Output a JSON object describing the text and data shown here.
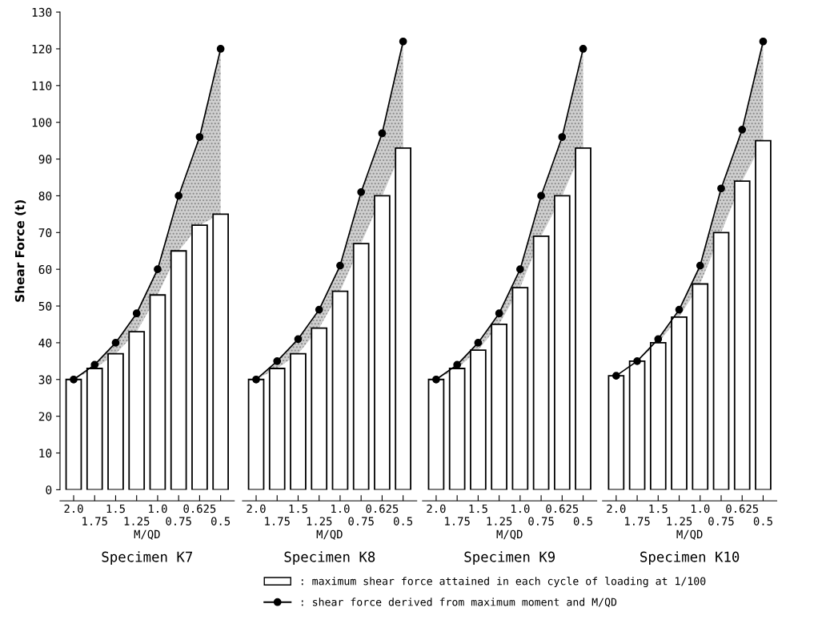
{
  "chart_data": [
    {
      "type": "bar",
      "title": "Specimen K7",
      "xlabel": "M/QD",
      "ylabel": "Shear Force (t)",
      "categories": [
        "2.0",
        "1.75",
        "1.5",
        "1.25",
        "1.0",
        "0.75",
        "0.625",
        "0.5"
      ],
      "ylim": [
        0,
        130
      ],
      "yticks": [
        0,
        10,
        20,
        30,
        40,
        50,
        60,
        70,
        80,
        90,
        100,
        110,
        120,
        130
      ],
      "grid": false,
      "marker": "circle",
      "series": [
        {
          "color": "#ffffff",
          "values": [
            30,
            33,
            37,
            43,
            53,
            65,
            72,
            75
          ]
        },
        {
          "type": "line",
          "color": "#000000",
          "values": [
            30,
            34,
            40,
            48,
            60,
            80,
            96,
            120
          ],
          "lower": [
            30,
            33,
            37,
            43,
            53,
            65,
            72,
            75
          ],
          "upper": [
            30,
            34,
            40,
            48,
            60,
            80,
            96,
            120
          ]
        }
      ]
    },
    {
      "type": "bar",
      "title": "Specimen K8",
      "xlabel": "M/QD",
      "categories": [
        "2.0",
        "1.75",
        "1.5",
        "1.25",
        "1.0",
        "0.75",
        "0.625",
        "0.5"
      ],
      "ylim": [
        0,
        130
      ],
      "tick_labels": "x",
      "grid": false,
      "marker": "circle",
      "series": [
        {
          "color": "#ffffff",
          "values": [
            30,
            33,
            37,
            44,
            54,
            67,
            80,
            93
          ]
        },
        {
          "type": "line",
          "color": "#000000",
          "values": [
            30,
            35,
            41,
            49,
            61,
            81,
            97,
            122
          ],
          "lower": [
            30,
            33,
            37,
            44,
            54,
            67,
            80,
            93
          ],
          "upper": [
            30,
            35,
            41,
            49,
            61,
            81,
            97,
            122
          ]
        }
      ]
    },
    {
      "type": "bar",
      "title": "Specimen K9",
      "xlabel": "M/QD",
      "categories": [
        "2.0",
        "1.75",
        "1.5",
        "1.25",
        "1.0",
        "0.75",
        "0.625",
        "0.5"
      ],
      "ylim": [
        0,
        130
      ],
      "tick_labels": "x",
      "grid": false,
      "marker": "circle",
      "series": [
        {
          "color": "#ffffff",
          "values": [
            30,
            33,
            38,
            45,
            55,
            69,
            80,
            93
          ]
        },
        {
          "type": "line",
          "color": "#000000",
          "values": [
            30,
            34,
            40,
            48,
            60,
            80,
            96,
            120
          ],
          "lower": [
            30,
            33,
            38,
            45,
            55,
            69,
            80,
            93
          ],
          "upper": [
            30,
            34,
            40,
            48,
            60,
            80,
            96,
            120
          ]
        }
      ]
    },
    {
      "type": "bar",
      "title": "Specimen K10",
      "xlabel": "M/QD",
      "categories": [
        "2.0",
        "1.75",
        "1.5",
        "1.25",
        "1.0",
        "0.75",
        "0.625",
        "0.5"
      ],
      "ylim": [
        0,
        130
      ],
      "tick_labels": "x",
      "grid": false,
      "marker": "circle",
      "legend": "bottom",
      "series": [
        {
          "name": ": maximum shear force attained in each cycle of loading at 1/100",
          "color": "#ffffff",
          "values": [
            31,
            35,
            40,
            47,
            56,
            70,
            84,
            95
          ]
        },
        {
          "type": "line",
          "name": ": shear force derived from maximum moment and M/QD",
          "color": "#000000",
          "values": [
            31,
            35,
            41,
            49,
            61,
            82,
            98,
            122
          ],
          "lower": [
            31,
            35,
            40,
            47,
            56,
            70,
            84,
            95
          ],
          "upper": [
            31,
            35,
            41,
            49,
            61,
            82,
            98,
            122
          ]
        }
      ]
    }
  ]
}
